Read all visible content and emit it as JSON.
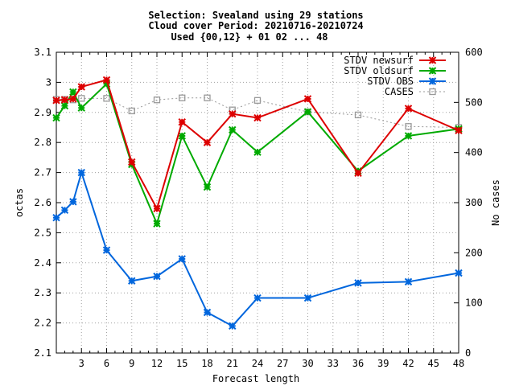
{
  "chart_data": {
    "type": "line",
    "title_lines": [
      "Selection: Svealand using    29 stations",
      "Cloud cover   Period: 20210716-20210724",
      "Used {00,12} + 01 02 ... 48"
    ],
    "xlabel": "Forecast length",
    "ylabel": "octas",
    "y2label": "No cases",
    "xlim": [
      0,
      48
    ],
    "ylim": [
      2.1,
      3.1
    ],
    "y2lim": [
      0,
      600
    ],
    "x_ticks": [
      3,
      6,
      9,
      12,
      15,
      18,
      21,
      24,
      27,
      30,
      33,
      36,
      39,
      42,
      45,
      48
    ],
    "y_ticks": [
      2.1,
      2.2,
      2.3,
      2.4,
      2.5,
      2.6,
      2.7,
      2.8,
      2.9,
      3,
      3.1
    ],
    "y2_ticks": [
      0,
      100,
      200,
      300,
      400,
      500,
      600
    ],
    "grid": true,
    "legend_position": "top-right",
    "series": [
      {
        "name": "STDV newsurf",
        "axis": "left",
        "color": "#dd0000",
        "marker": "x",
        "x": [
          0,
          1,
          2,
          3,
          6,
          9,
          12,
          15,
          18,
          21,
          24,
          30,
          36,
          42,
          48
        ],
        "y": [
          2.94,
          2.942,
          2.945,
          2.985,
          3.008,
          2.735,
          2.58,
          2.868,
          2.8,
          2.895,
          2.882,
          2.945,
          2.698,
          2.913,
          2.84
        ]
      },
      {
        "name": "STDV oldsurf",
        "axis": "left",
        "color": "#00aa00",
        "marker": "x",
        "x": [
          0,
          1,
          2,
          3,
          6,
          9,
          12,
          15,
          18,
          21,
          24,
          30,
          36,
          42,
          48
        ],
        "y": [
          2.882,
          2.922,
          2.968,
          2.915,
          2.995,
          2.727,
          2.53,
          2.822,
          2.652,
          2.842,
          2.768,
          2.902,
          2.705,
          2.822,
          2.845
        ]
      },
      {
        "name": "STDV OBS",
        "axis": "left",
        "color": "#0066dd",
        "marker": "x",
        "x": [
          0,
          1,
          2,
          3,
          6,
          9,
          12,
          15,
          18,
          21,
          24,
          30,
          36,
          42,
          48
        ],
        "y": [
          2.55,
          2.575,
          2.603,
          2.7,
          2.442,
          2.34,
          2.355,
          2.413,
          2.235,
          2.19,
          2.283,
          2.283,
          2.333,
          2.337,
          2.366
        ]
      },
      {
        "name": "CASES",
        "axis": "right",
        "color": "#999999",
        "marker": "square",
        "dashed": true,
        "x": [
          0,
          1,
          2,
          3,
          6,
          9,
          12,
          15,
          18,
          21,
          24,
          30,
          36,
          42,
          48
        ],
        "y": [
          506,
          506,
          505,
          508,
          508,
          483,
          505,
          509,
          509,
          485,
          504,
          481,
          475,
          452,
          450
        ]
      }
    ]
  }
}
